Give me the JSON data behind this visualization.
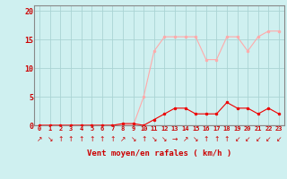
{
  "hours": [
    0,
    1,
    2,
    3,
    4,
    5,
    6,
    7,
    8,
    9,
    10,
    11,
    12,
    13,
    14,
    15,
    16,
    17,
    18,
    19,
    20,
    21,
    22,
    23
  ],
  "wind_avg": [
    0,
    0,
    0,
    0,
    0,
    0,
    0,
    0,
    0.3,
    0.3,
    0,
    1,
    2,
    3,
    3,
    2,
    2,
    2,
    4,
    3,
    3,
    2,
    3,
    2
  ],
  "wind_gust": [
    0,
    0,
    0,
    0,
    0,
    0,
    0,
    0,
    0,
    0,
    5,
    13,
    15.5,
    15.5,
    15.5,
    15.5,
    11.5,
    11.5,
    15.5,
    15.5,
    13,
    15.5,
    16.5,
    16.5
  ],
  "bg_color": "#cff0f0",
  "grid_color": "#aad4d4",
  "line_avg_color": "#ee0000",
  "line_gust_color": "#ffaaaa",
  "marker_color_avg": "#ee0000",
  "marker_color_gust": "#ffaaaa",
  "xlabel": "Vent moyen/en rafales ( km/h )",
  "xlabel_color": "#cc0000",
  "tick_color": "#cc0000",
  "ylim": [
    0,
    21
  ],
  "yticks": [
    0,
    5,
    10,
    15,
    20
  ],
  "spine_color": "#888888",
  "arrow_chars": [
    "↗",
    "↘",
    "↑",
    "↑",
    "↑",
    "↑",
    "↑",
    "↑",
    "↗",
    "↘",
    "↑",
    "↘",
    "↘",
    "→",
    "↗",
    "↘",
    "↑",
    "↑",
    "↑",
    "↙",
    "↙",
    "↙",
    "↙",
    "↙"
  ]
}
